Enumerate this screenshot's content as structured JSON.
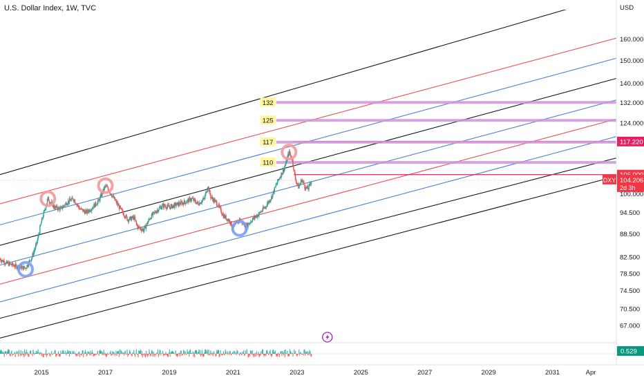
{
  "header": {
    "title": "U.S. Dollar Index, 1W, TVC"
  },
  "colors": {
    "black_channel": "#131722",
    "red_channel": "#e8504f",
    "blue_channel": "#4a7fd6",
    "level_line": "#ce93d8",
    "badge_yellow": "#fff59d",
    "red_circle": "#ef9a9a",
    "blue_circle": "#7b9ff0",
    "candle_up": "#26a69a",
    "candle_down": "#ef5350",
    "current_price": "#f23645",
    "vol_badge": "#089981",
    "icon_purple": "#9c27b0"
  },
  "chart_data": {
    "type": "candlestick",
    "symbol": "DXY",
    "interval": "1W",
    "exchange": "TVC",
    "currency_label": "USD",
    "x_ticks": [
      "2015",
      "2017",
      "2019",
      "2021",
      "2023",
      "2025",
      "2027",
      "2029",
      "2031",
      "Apr"
    ],
    "y_ticks": [
      "160.000",
      "150.000",
      "140.000",
      "132.000",
      "124.000",
      "100.000",
      "94.500",
      "88.500",
      "82.500",
      "78.500",
      "74.500",
      "70.500",
      "67.000"
    ],
    "xlim": [
      2013.7,
      2033.0
    ],
    "ylim": [
      64.0,
      175.0
    ],
    "y_scale": "log",
    "price_path": [
      [
        2013.7,
        82.0
      ],
      [
        2013.9,
        81.0
      ],
      [
        2014.1,
        80.5
      ],
      [
        2014.3,
        80.0
      ],
      [
        2014.5,
        79.8
      ],
      [
        2014.7,
        82.5
      ],
      [
        2014.85,
        86.0
      ],
      [
        2015.0,
        92.0
      ],
      [
        2015.2,
        98.5
      ],
      [
        2015.4,
        96.0
      ],
      [
        2015.6,
        95.5
      ],
      [
        2015.8,
        97.5
      ],
      [
        2016.0,
        98.5
      ],
      [
        2016.2,
        95.5
      ],
      [
        2016.4,
        94.5
      ],
      [
        2016.6,
        96.0
      ],
      [
        2016.8,
        98.0
      ],
      [
        2017.0,
        102.5
      ],
      [
        2017.15,
        100.5
      ],
      [
        2017.3,
        98.0
      ],
      [
        2017.5,
        95.0
      ],
      [
        2017.7,
        92.5
      ],
      [
        2017.9,
        93.0
      ],
      [
        2018.0,
        90.5
      ],
      [
        2018.2,
        89.5
      ],
      [
        2018.4,
        93.0
      ],
      [
        2018.6,
        95.0
      ],
      [
        2018.8,
        96.5
      ],
      [
        2019.0,
        96.0
      ],
      [
        2019.3,
        97.0
      ],
      [
        2019.5,
        97.5
      ],
      [
        2019.7,
        98.5
      ],
      [
        2019.9,
        97.0
      ],
      [
        2020.1,
        98.5
      ],
      [
        2020.2,
        102.5
      ],
      [
        2020.3,
        99.0
      ],
      [
        2020.5,
        97.0
      ],
      [
        2020.7,
        93.5
      ],
      [
        2020.9,
        92.0
      ],
      [
        2021.0,
        90.0
      ],
      [
        2021.2,
        92.5
      ],
      [
        2021.4,
        90.5
      ],
      [
        2021.6,
        92.5
      ],
      [
        2021.8,
        94.0
      ],
      [
        2022.0,
        96.0
      ],
      [
        2022.2,
        99.0
      ],
      [
        2022.4,
        104.0
      ],
      [
        2022.6,
        108.0
      ],
      [
        2022.75,
        113.5
      ],
      [
        2022.85,
        111.0
      ],
      [
        2022.95,
        104.5
      ],
      [
        2023.05,
        102.0
      ],
      [
        2023.15,
        104.5
      ],
      [
        2023.25,
        102.0
      ],
      [
        2023.35,
        101.5
      ],
      [
        2023.45,
        104.2
      ]
    ],
    "channel_lines": [
      {
        "color": "black",
        "p1": [
          2013.7,
          106.0
        ],
        "p2": [
          2031.6,
          176.0
        ]
      },
      {
        "color": "red",
        "p1": [
          2013.7,
          97.0
        ],
        "p2": [
          2033.0,
          160.5
        ]
      },
      {
        "color": "blue",
        "p1": [
          2013.7,
          91.0
        ],
        "p2": [
          2033.0,
          151.0
        ]
      },
      {
        "color": "black",
        "p1": [
          2013.7,
          85.5
        ],
        "p2": [
          2033.0,
          142.0
        ]
      },
      {
        "color": "blue",
        "p1": [
          2013.7,
          80.5
        ],
        "p2": [
          2033.0,
          133.0
        ]
      },
      {
        "color": "red",
        "p1": [
          2013.7,
          76.0
        ],
        "p2": [
          2033.0,
          125.5
        ]
      },
      {
        "color": "blue",
        "p1": [
          2013.7,
          72.0
        ],
        "p2": [
          2033.0,
          119.0
        ]
      },
      {
        "color": "black",
        "p1": [
          2013.7,
          68.5
        ],
        "p2": [
          2033.0,
          111.5
        ]
      },
      {
        "color": "black",
        "p1": [
          2013.7,
          64.5
        ],
        "p2": [
          2033.0,
          105.5
        ]
      }
    ],
    "level_lines": [
      {
        "label": "132",
        "value": 132.0
      },
      {
        "label": "125",
        "value": 125.0
      },
      {
        "label": "117",
        "value": 117.0
      },
      {
        "label": "110",
        "value": 110.0
      }
    ],
    "highlighted_prices": [
      {
        "label": "117.220",
        "value": 117.22
      },
      {
        "label": "106.000",
        "value": 106.0
      }
    ],
    "current_price": {
      "symbol": "DXY",
      "value": 104.206,
      "label": "104.206",
      "countdown": "2d 3h"
    },
    "markers": [
      {
        "type": "red-circle",
        "x": 2015.2,
        "y": 98.5
      },
      {
        "type": "red-circle",
        "x": 2017.0,
        "y": 102.5
      },
      {
        "type": "red-circle",
        "x": 2022.75,
        "y": 113.5
      },
      {
        "type": "blue-circle",
        "x": 2014.5,
        "y": 79.5
      },
      {
        "type": "blue-circle",
        "x": 2021.2,
        "y": 90.0
      }
    ],
    "indicator": {
      "value_label": "0.529",
      "value": 0.529
    }
  }
}
